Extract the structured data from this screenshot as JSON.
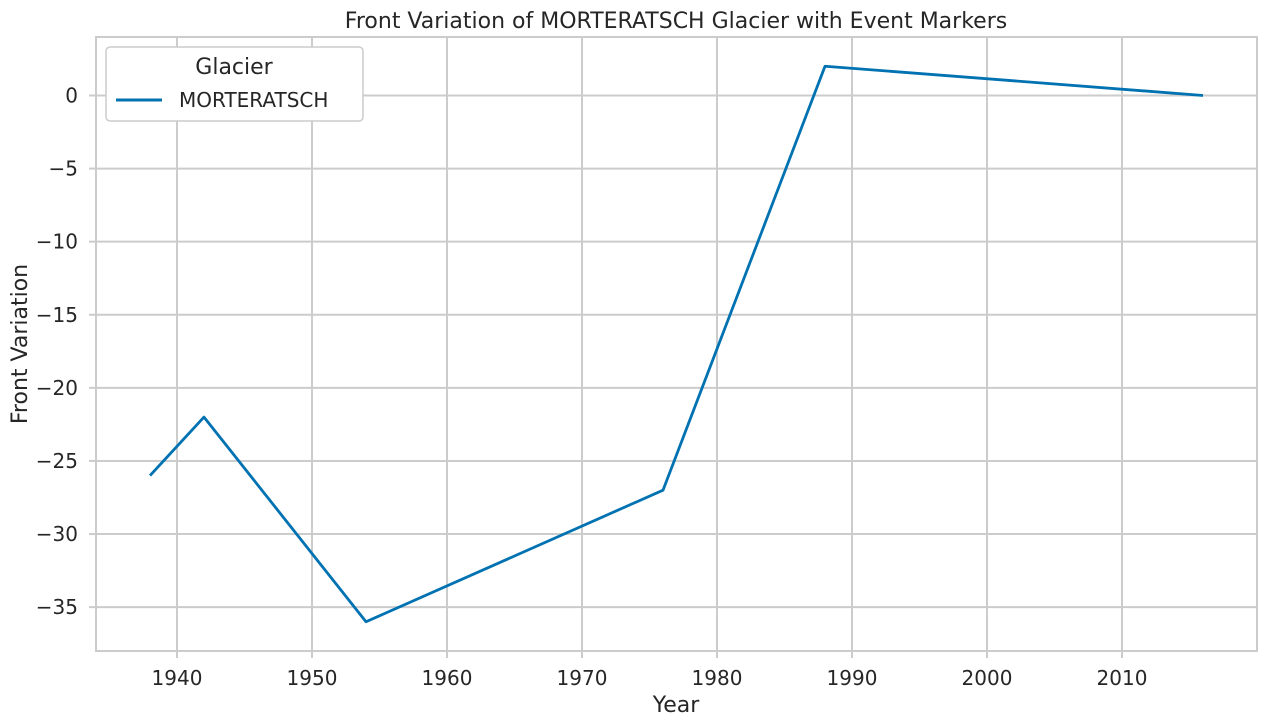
{
  "chart_data": {
    "type": "line",
    "title": "Front Variation of MORTERATSCH Glacier with Event Markers",
    "xlabel": "Year",
    "ylabel": "Front Variation",
    "xlim": [
      1934,
      2020
    ],
    "ylim": [
      -38,
      4
    ],
    "xticks": [
      1940,
      1950,
      1960,
      1970,
      1980,
      1990,
      2000,
      2010
    ],
    "yticks": [
      0,
      -5,
      -10,
      -15,
      -20,
      -25,
      -30,
      -35
    ],
    "ytick_labels": [
      "0",
      "−5",
      "−10",
      "−15",
      "−20",
      "−25",
      "−30",
      "−35"
    ],
    "grid": true,
    "legend": {
      "title": "Glacier",
      "placement": "top-left"
    },
    "series": [
      {
        "name": "MORTERATSCH",
        "color": "#0072b2",
        "x": [
          1938,
          1942,
          1954,
          1976,
          1988,
          2016
        ],
        "y": [
          -26,
          -22,
          -36,
          -27,
          2,
          0
        ]
      }
    ]
  }
}
